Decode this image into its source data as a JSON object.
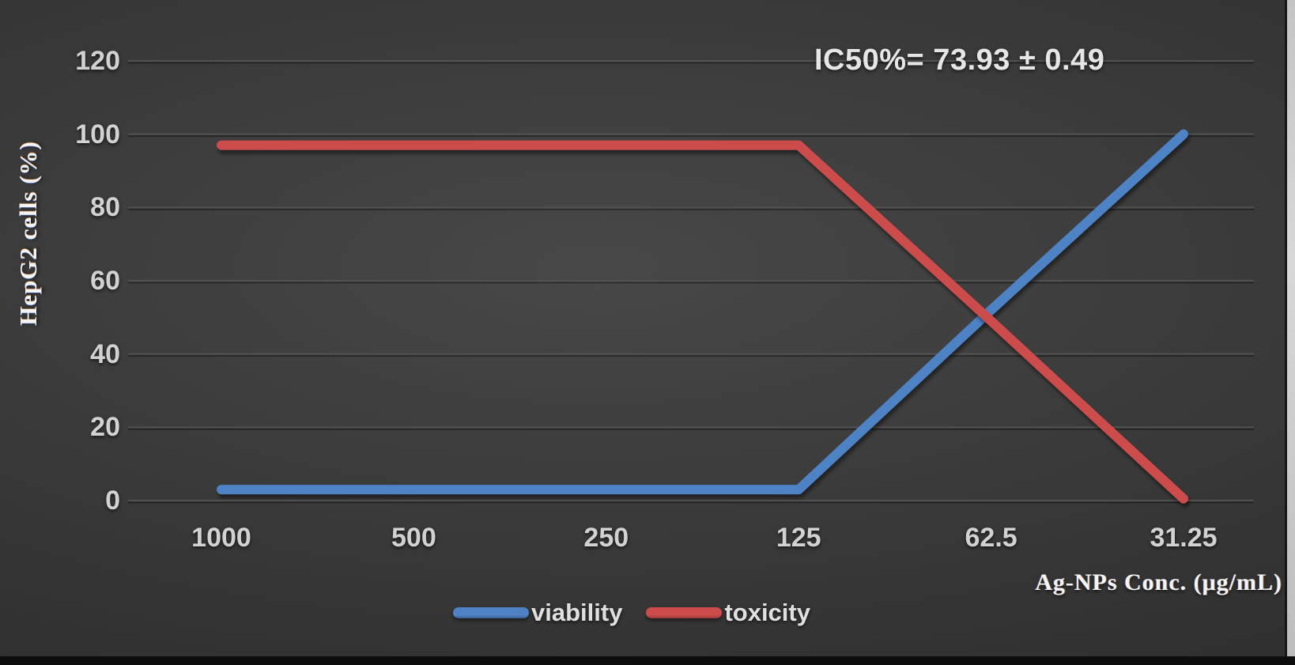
{
  "chart_data": {
    "type": "line",
    "title": "",
    "annotation": "IC50%= 73.93 ± 0.49",
    "xlabel": "Ag-NPs Conc. (μg/mL)",
    "ylabel": "HepG2 cells (%)",
    "categories": [
      "1000",
      "500",
      "250",
      "125",
      "62.5",
      "31.25"
    ],
    "series": [
      {
        "name": "viability",
        "color": "#4e82c4",
        "values": [
          3,
          3,
          3,
          3,
          52,
          100
        ]
      },
      {
        "name": "toxicity",
        "color": "#cc4b4b",
        "values": [
          97,
          97,
          97,
          97,
          49,
          0.5
        ]
      }
    ],
    "ylim": [
      0,
      120
    ],
    "yticks": [
      0,
      20,
      40,
      60,
      80,
      100,
      120
    ],
    "grid": true,
    "legend_position": "bottom"
  },
  "colors": {
    "background_center": "#484848",
    "background_edge": "#2b2b2b",
    "gridline": "#515151",
    "tick_text": "#d2d2d2",
    "title_text": "#f4f4f4",
    "viability_line": "#4e82c4",
    "toxicity_line": "#cc4b4b"
  }
}
